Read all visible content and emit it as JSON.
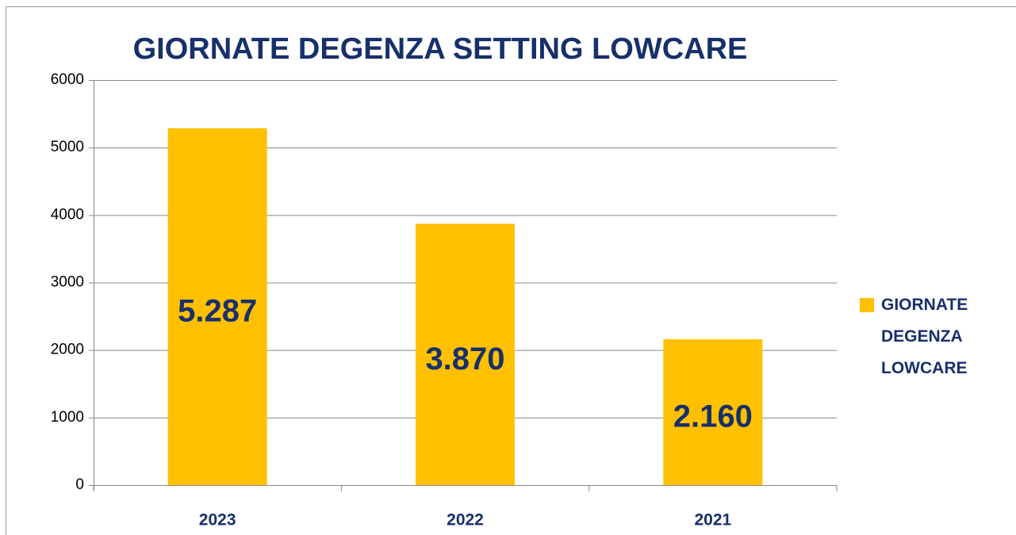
{
  "chart_data": {
    "type": "bar",
    "title": "GIORNATE DEGENZA SETTING LOWCARE",
    "categories": [
      "2023",
      "2022",
      "2021"
    ],
    "series": [
      {
        "name": "GIORNATE DEGENZA LOWCARE",
        "color": "#FFC000",
        "values": [
          5287,
          3870,
          2160
        ],
        "value_labels": [
          "5.287",
          "3.870",
          "2.160"
        ]
      }
    ],
    "ylim": [
      0,
      6000
    ],
    "yticks": [
      0,
      1000,
      2000,
      3000,
      4000,
      5000,
      6000
    ],
    "grid": true,
    "legend": "right"
  }
}
